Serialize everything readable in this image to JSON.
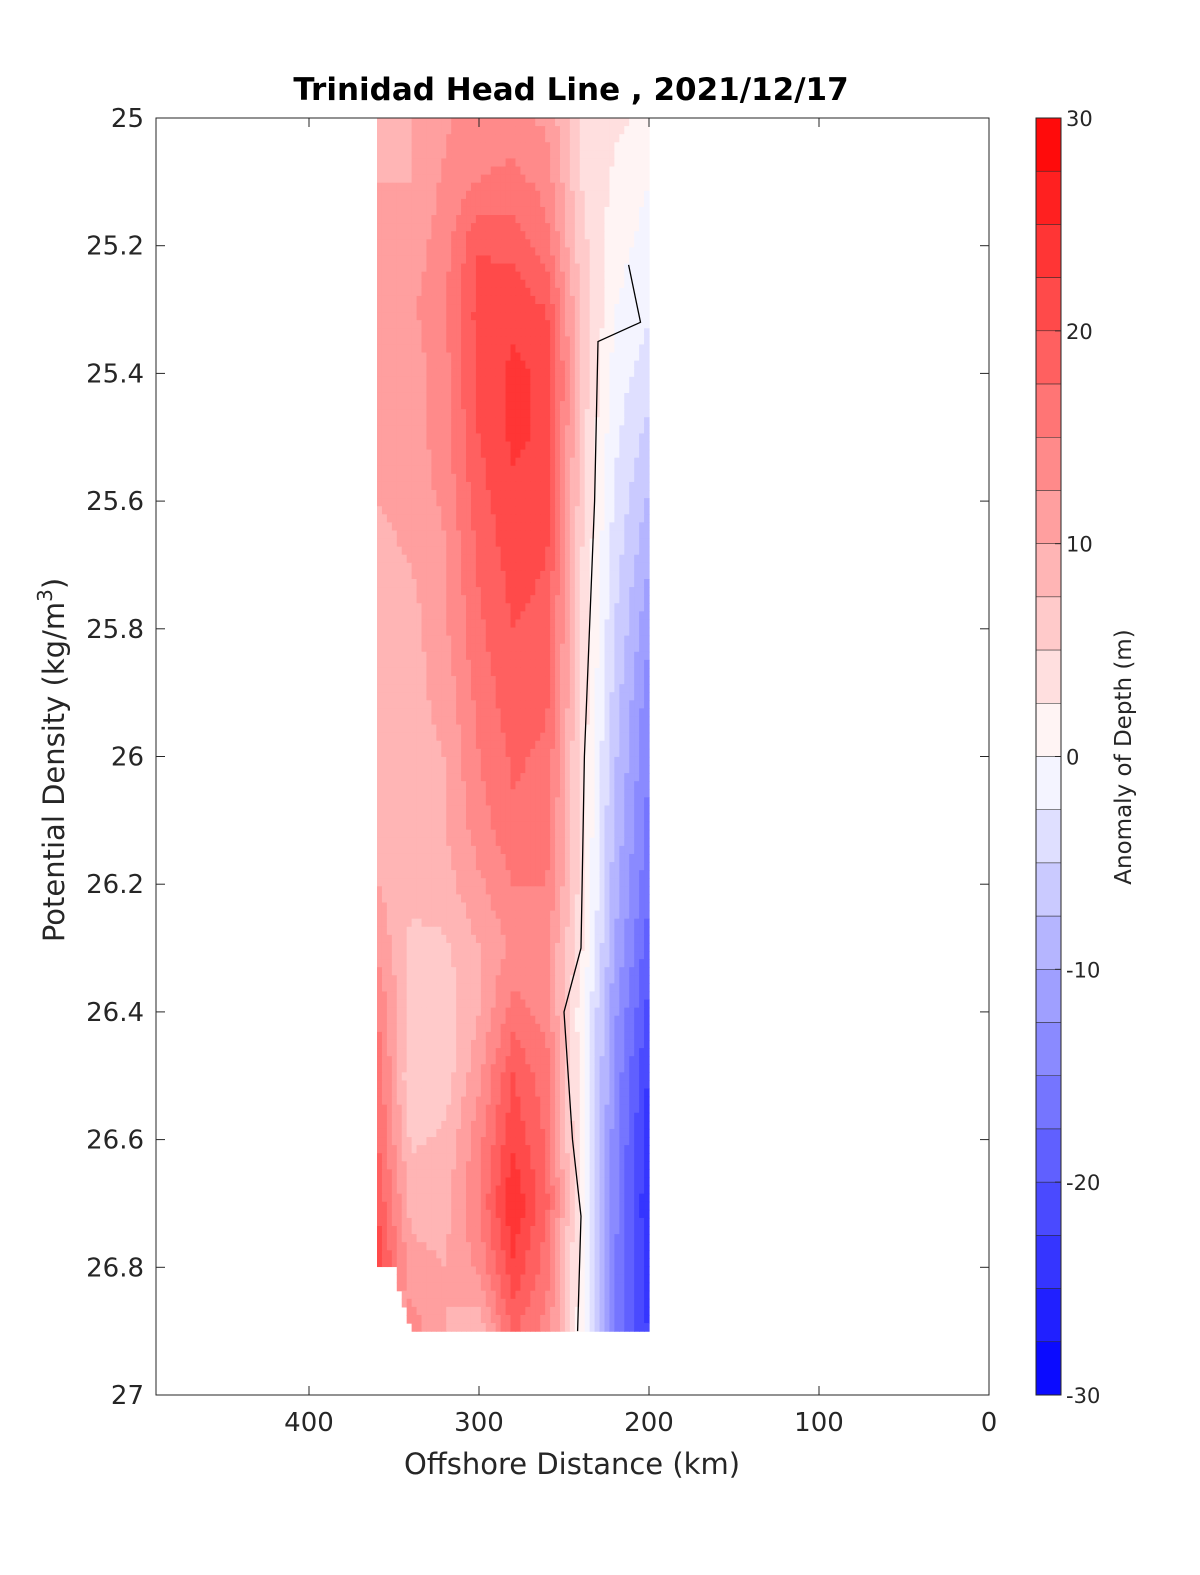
{
  "chart_data": {
    "type": "heatmap",
    "title": "Trinidad Head Line , 2021/12/17",
    "xlabel": "Offshore Distance (km)",
    "ylabel_main": "Potential Density (kg/m",
    "ylabel_sup": "3",
    "ylabel_end": ")",
    "xlim": [
      490,
      0
    ],
    "ylim": [
      25,
      27
    ],
    "x_reversed": true,
    "y_reversed": true,
    "x_ticks": [
      400,
      300,
      200,
      100,
      0
    ],
    "x_tick_labels": [
      "400",
      "300",
      "200",
      "100",
      "0"
    ],
    "y_ticks": [
      25,
      25.2,
      25.4,
      25.6,
      25.8,
      26,
      26.2,
      26.4,
      26.6,
      26.8,
      27
    ],
    "y_tick_labels": [
      "25",
      "25.2",
      "25.4",
      "25.6",
      "25.8",
      "26",
      "26.2",
      "26.4",
      "26.6",
      "26.8",
      "27"
    ],
    "colorbar": {
      "label": "Anomaly of Depth (m)",
      "range": [
        -30,
        30
      ],
      "step": 2.5,
      "ticks": [
        30,
        20,
        10,
        0,
        -10,
        -20,
        -30
      ],
      "tick_labels": [
        "30",
        "20",
        "10",
        "0",
        "-10",
        "-20",
        "-30"
      ],
      "color_low": "#0000ff",
      "color_mid": "#ffffff",
      "color_high": "#ff0000"
    },
    "grid": false,
    "x": [
      360,
      340,
      320,
      300,
      280,
      260,
      240,
      220,
      200
    ],
    "y": [
      25,
      25.1,
      25.2,
      25.3,
      25.4,
      25.5,
      25.6,
      25.7,
      25.8,
      25.9,
      26,
      26.1,
      26.2,
      26.3,
      26.4,
      26.5,
      26.6,
      26.7,
      26.8,
      26.9
    ],
    "z": [
      [
        8,
        10,
        12,
        14,
        13,
        12,
        5,
        3,
        2
      ],
      [
        10,
        10,
        13,
        15,
        16,
        14,
        5,
        2,
        0
      ],
      [
        11,
        11,
        14,
        20,
        19,
        16,
        6,
        1,
        -1
      ],
      [
        11,
        12,
        15,
        21,
        22,
        20,
        7,
        0,
        -2
      ],
      [
        10,
        11,
        14,
        21,
        23,
        22,
        7,
        -1,
        -4
      ],
      [
        10,
        11,
        14,
        20,
        23,
        22,
        6,
        -2,
        -6
      ],
      [
        10,
        11,
        13,
        19,
        22,
        21,
        6,
        -3,
        -8
      ],
      [
        9,
        10,
        12,
        18,
        21,
        20,
        5,
        -4,
        -10
      ],
      [
        9,
        9,
        12,
        17,
        20,
        19,
        5,
        -5,
        -12
      ],
      [
        8,
        9,
        11,
        16,
        19,
        18,
        5,
        -6,
        -14
      ],
      [
        8,
        9,
        10,
        15,
        18,
        17,
        4,
        -7,
        -15
      ],
      [
        9,
        8,
        10,
        14,
        17,
        16,
        4,
        -8,
        -16
      ],
      [
        10,
        8,
        9,
        12,
        15,
        15,
        4,
        -9,
        -17
      ],
      [
        12,
        7,
        7,
        10,
        13,
        13,
        3,
        -10,
        -19
      ],
      [
        15,
        7,
        6,
        10,
        16,
        14,
        1,
        -12,
        -21
      ],
      [
        17,
        5,
        6,
        12,
        20,
        16,
        1,
        -13,
        -23
      ],
      [
        18,
        7,
        8,
        14,
        22,
        17,
        1,
        -14,
        -24
      ],
      [
        20,
        9,
        9,
        15,
        25,
        18,
        1,
        -14,
        -25
      ],
      [
        22,
        11,
        10,
        13,
        22,
        16,
        1,
        -15,
        -24
      ],
      [
        0,
        14,
        10,
        8,
        18,
        14,
        1,
        -15,
        -23
      ]
    ],
    "zero_contour": [
      [
        212,
        25.23
      ],
      [
        205,
        25.32
      ],
      [
        230,
        25.35
      ],
      [
        232,
        25.6
      ],
      [
        238,
        26.0
      ],
      [
        240,
        26.3
      ],
      [
        250,
        26.4
      ],
      [
        245,
        26.6
      ],
      [
        240,
        26.72
      ],
      [
        242,
        26.9
      ]
    ]
  }
}
